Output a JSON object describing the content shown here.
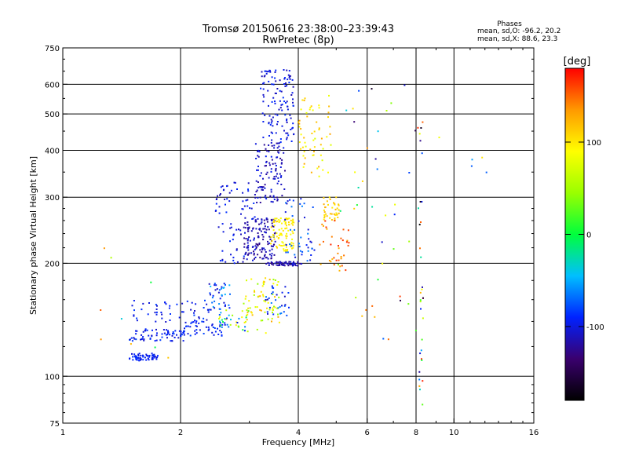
{
  "chart_data": {
    "type": "scatter",
    "title": "Tromsø 20150616 23:38:00–23:39:43",
    "subtitle": "RwPretec (8p)",
    "xlabel": "Frequency [MHz]",
    "ylabel": "Stationary phase Virtual Height [km]",
    "xscale": "log",
    "yscale": "log",
    "xlim": [
      1,
      16
    ],
    "ylim": [
      75,
      750
    ],
    "grid": true,
    "x_ticks": [
      {
        "value": 1,
        "label": "1"
      },
      {
        "value": 2,
        "label": "2"
      },
      {
        "value": 4,
        "label": "4"
      },
      {
        "value": 6,
        "label": "6"
      },
      {
        "value": 8,
        "label": "8"
      },
      {
        "value": 10,
        "label": "10"
      },
      {
        "value": 16,
        "label": "16"
      }
    ],
    "y_ticks": [
      {
        "value": 75,
        "label": "75"
      },
      {
        "value": 100,
        "label": "100"
      },
      {
        "value": 200,
        "label": "200"
      },
      {
        "value": 300,
        "label": "300"
      },
      {
        "value": 400,
        "label": "400"
      },
      {
        "value": 500,
        "label": "500"
      },
      {
        "value": 600,
        "label": "600"
      },
      {
        "value": 750,
        "label": "750"
      }
    ],
    "phase_stats": {
      "heading": "Phases",
      "line_o": "mean, sd,O: -96.2, 20.2",
      "line_x": "mean, sd,X: 88.6, 23.3"
    },
    "colorbar": {
      "label": "[deg]",
      "min": -180,
      "max": 180,
      "tick_labels": [
        {
          "value": 100,
          "label": "100"
        },
        {
          "value": 0,
          "label": "0"
        },
        {
          "value": -100,
          "label": "-100"
        }
      ],
      "stops": [
        "#000000",
        "#3a006e",
        "#0022ff",
        "#00bfff",
        "#00ff3c",
        "#9aff00",
        "#ffff00",
        "#ff9900",
        "#ff0000"
      ]
    },
    "clusters": [
      {
        "x": [
          1.48,
          1.75
        ],
        "y": [
          110,
          115
        ],
        "phase": [
          -105,
          -85
        ],
        "count": 60
      },
      {
        "x": [
          1.48,
          2.05
        ],
        "y": [
          124,
          134
        ],
        "phase": [
          -110,
          -80
        ],
        "count": 70
      },
      {
        "x": [
          1.5,
          2.4
        ],
        "y": [
          138,
          160
        ],
        "phase": [
          -110,
          -80
        ],
        "count": 55
      },
      {
        "x": [
          2.0,
          2.6
        ],
        "y": [
          128,
          140
        ],
        "phase": [
          -110,
          -80
        ],
        "count": 45
      },
      {
        "x": [
          2.35,
          2.7
        ],
        "y": [
          150,
          180
        ],
        "phase": [
          -110,
          -40
        ],
        "count": 40
      },
      {
        "x": [
          2.5,
          3.0
        ],
        "y": [
          132,
          150
        ],
        "phase": [
          -100,
          110
        ],
        "count": 35
      },
      {
        "x": [
          2.9,
          3.6
        ],
        "y": [
          130,
          185
        ],
        "phase": [
          40,
          130
        ],
        "count": 70
      },
      {
        "x": [
          3.3,
          3.8
        ],
        "y": [
          145,
          175
        ],
        "phase": [
          -110,
          -60
        ],
        "count": 30
      },
      {
        "x": [
          2.45,
          3.1
        ],
        "y": [
          200,
          330
        ],
        "phase": [
          -115,
          -85
        ],
        "count": 80
      },
      {
        "x": [
          2.9,
          3.5
        ],
        "y": [
          205,
          265
        ],
        "phase": [
          -130,
          -100
        ],
        "count": 140
      },
      {
        "x": [
          3.1,
          3.7
        ],
        "y": [
          290,
          420
        ],
        "phase": [
          -125,
          -95
        ],
        "count": 110
      },
      {
        "x": [
          3.2,
          3.9
        ],
        "y": [
          420,
          660
        ],
        "phase": [
          -115,
          -85
        ],
        "count": 120
      },
      {
        "x": [
          3.4,
          3.9
        ],
        "y": [
          215,
          265
        ],
        "phase": [
          85,
          110
        ],
        "count": 90
      },
      {
        "x": [
          3.3,
          4.1
        ],
        "y": [
          197,
          202
        ],
        "phase": [
          -130,
          -100
        ],
        "count": 60
      },
      {
        "x": [
          3.7,
          4.4
        ],
        "y": [
          200,
          300
        ],
        "phase": [
          -110,
          -60
        ],
        "count": 45
      },
      {
        "x": [
          4.0,
          4.9
        ],
        "y": [
          340,
          560
        ],
        "phase": [
          70,
          130
        ],
        "count": 60
      },
      {
        "x": [
          4.6,
          5.1
        ],
        "y": [
          260,
          300
        ],
        "phase": [
          95,
          125
        ],
        "count": 40
      },
      {
        "x": [
          4.5,
          5.4
        ],
        "y": [
          188,
          260
        ],
        "phase": [
          120,
          170
        ],
        "count": 35
      },
      {
        "x": [
          5.0,
          8.2
        ],
        "y": [
          120,
          600
        ],
        "phase": [
          -180,
          180
        ],
        "count": 45
      },
      {
        "x": [
          8.15,
          8.35
        ],
        "y": [
          82,
          520
        ],
        "phase": [
          -180,
          180
        ],
        "count": 30
      },
      {
        "x": [
          9.0,
          13.0
        ],
        "y": [
          240,
          480
        ],
        "phase": [
          -100,
          150
        ],
        "count": 5
      },
      {
        "x": [
          1.2,
          1.3
        ],
        "y": [
          95,
          320
        ],
        "phase": [
          120,
          160
        ],
        "count": 3
      },
      {
        "x": [
          1.3,
          1.9
        ],
        "y": [
          100,
          230
        ],
        "phase": [
          -40,
          150
        ],
        "count": 6
      }
    ]
  }
}
